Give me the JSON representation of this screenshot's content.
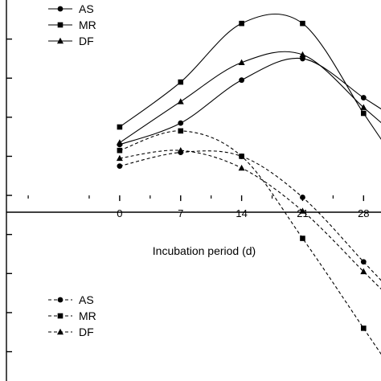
{
  "chart_data": {
    "type": "line",
    "title": "",
    "xlabel": "Incubation period (d)",
    "ylabel": "",
    "x": [
      0,
      7,
      14,
      21,
      28
    ],
    "x_tick_labels": [
      "0",
      "7",
      "14",
      "21",
      "28"
    ],
    "xlim": [
      -13,
      30
    ],
    "ylim": [
      -9.5,
      10
    ],
    "y_tick_values": [
      -8,
      -6,
      -4,
      -2,
      0,
      2,
      4,
      6,
      8
    ],
    "series": [
      {
        "name": "AS",
        "group": "solid",
        "line_style": "solid",
        "marker": "circle",
        "values": [
          2.6,
          3.7,
          5.9,
          7.0,
          5.0
        ]
      },
      {
        "name": "MR",
        "group": "solid",
        "line_style": "solid",
        "marker": "square",
        "values": [
          3.5,
          5.8,
          8.8,
          8.8,
          4.2
        ]
      },
      {
        "name": "DF",
        "group": "solid",
        "line_style": "solid",
        "marker": "triangle",
        "values": [
          2.7,
          4.8,
          6.8,
          7.2,
          4.5
        ]
      },
      {
        "name": "AS",
        "group": "dashed",
        "line_style": "dashed",
        "marker": "circle",
        "values": [
          1.5,
          2.2,
          2.0,
          -0.1,
          -3.4
        ]
      },
      {
        "name": "MR",
        "group": "dashed",
        "line_style": "dashed",
        "marker": "square",
        "values": [
          2.3,
          3.3,
          2.0,
          -2.2,
          -6.8
        ]
      },
      {
        "name": "DF",
        "group": "dashed",
        "line_style": "dashed",
        "marker": "triangle",
        "values": [
          1.9,
          2.3,
          1.4,
          -0.8,
          -3.9
        ]
      }
    ],
    "legend": [
      {
        "position": "top-left",
        "series": [
          "AS",
          "MR",
          "DF"
        ],
        "line_style": "solid"
      },
      {
        "position": "bottom-left",
        "series": [
          "AS",
          "MR",
          "DF"
        ],
        "line_style": "dashed"
      }
    ],
    "grid": false
  }
}
